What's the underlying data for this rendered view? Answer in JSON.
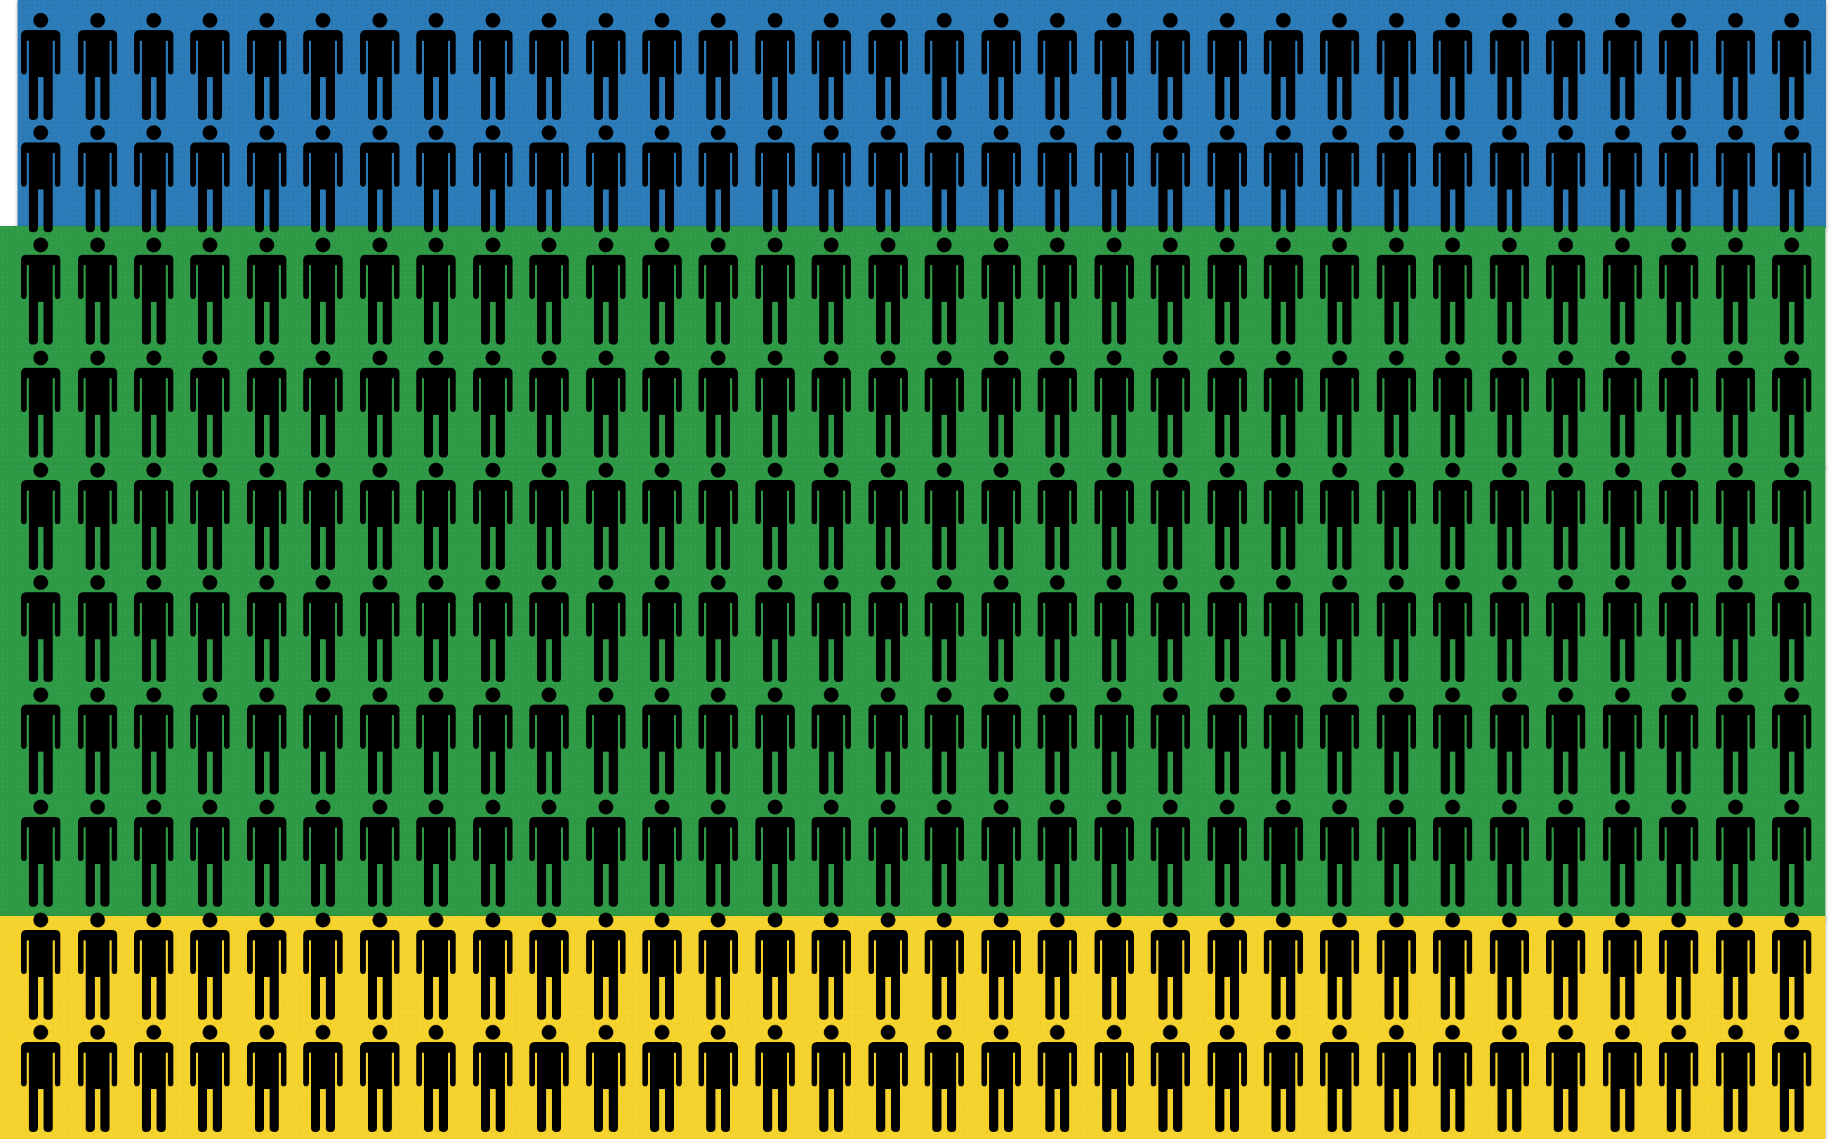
{
  "scene": {
    "figure_icon": "person-icon",
    "figure_color": "#000000",
    "figures_per_row": 32,
    "bands": [
      {
        "name": "band-blue",
        "color": "#2b7bb9",
        "rows": 2
      },
      {
        "name": "band-green1",
        "color": "#2e9a45",
        "rows": 2
      },
      {
        "name": "band-green2",
        "color": "#2e9a45",
        "rows": 4
      },
      {
        "name": "band-yellow",
        "color": "#f5d32c",
        "rows": 2
      }
    ]
  }
}
